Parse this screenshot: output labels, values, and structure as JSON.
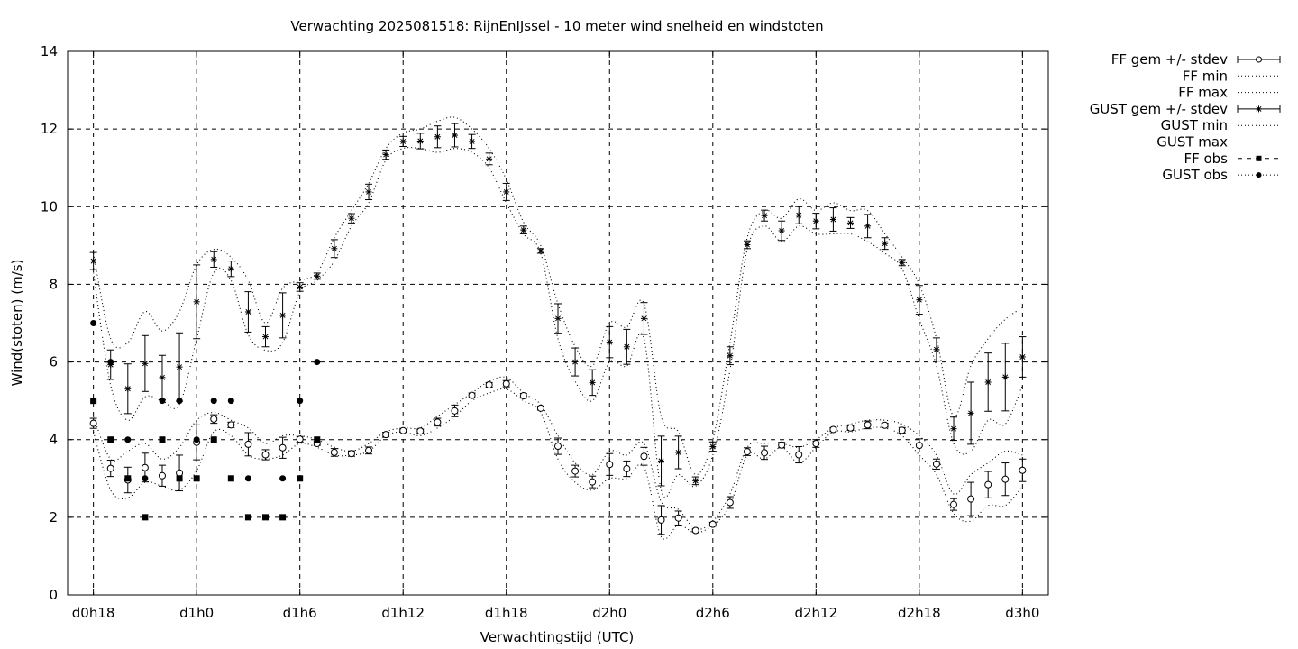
{
  "chart_data": {
    "type": "line",
    "title": "Verwachting 2025081518: RijnEnIJssel - 10 meter wind snelheid en windstoten",
    "xlabel": "Verwachtingstijd (UTC)",
    "ylabel": "Wind(stoten) (m/s)",
    "x_unit": "hours",
    "xlim": [
      -1.5,
      55.5
    ],
    "ylim": [
      0,
      14
    ],
    "yticks": [
      0,
      2,
      4,
      6,
      8,
      10,
      12,
      14
    ],
    "xticks": [
      {
        "x": 0,
        "label": "d0h18"
      },
      {
        "x": 6,
        "label": "d1h0"
      },
      {
        "x": 12,
        "label": "d1h6"
      },
      {
        "x": 18,
        "label": "d1h12"
      },
      {
        "x": 24,
        "label": "d1h18"
      },
      {
        "x": 30,
        "label": "d2h0"
      },
      {
        "x": 36,
        "label": "d2h6"
      },
      {
        "x": 42,
        "label": "d2h12"
      },
      {
        "x": 48,
        "label": "d2h18"
      },
      {
        "x": 54,
        "label": "d3h0"
      }
    ],
    "grid": true,
    "legend_position": "outside-right",
    "legend": [
      {
        "key": "ff_mean",
        "label": "FF gem +/- stdev"
      },
      {
        "key": "ff_min",
        "label": "FF min"
      },
      {
        "key": "ff_max",
        "label": "FF max"
      },
      {
        "key": "gust_mean",
        "label": "GUST gem +/- stdev"
      },
      {
        "key": "gust_min",
        "label": "GUST min"
      },
      {
        "key": "gust_max",
        "label": "GUST max"
      },
      {
        "key": "ff_obs",
        "label": "FF obs"
      },
      {
        "key": "gust_obs",
        "label": "GUST obs"
      }
    ],
    "x": [
      0,
      1,
      2,
      3,
      4,
      5,
      6,
      7,
      8,
      9,
      10,
      11,
      12,
      13,
      14,
      15,
      16,
      17,
      18,
      19,
      20,
      21,
      22,
      23,
      24,
      25,
      26,
      27,
      28,
      29,
      30,
      31,
      32,
      33,
      34,
      35,
      36,
      37,
      38,
      39,
      40,
      41,
      42,
      43,
      44,
      45,
      46,
      47,
      48,
      49,
      50,
      51,
      52,
      53,
      54
    ],
    "ff_mean": [
      4.42,
      3.26,
      2.96,
      3.28,
      3.07,
      3.14,
      3.93,
      4.53,
      4.38,
      3.88,
      3.61,
      3.79,
      4.01,
      3.9,
      3.67,
      3.64,
      3.72,
      4.13,
      4.23,
      4.22,
      4.45,
      4.74,
      5.14,
      5.41,
      5.44,
      5.13,
      4.81,
      3.83,
      3.19,
      2.91,
      3.36,
      3.25,
      3.57,
      1.93,
      1.98,
      1.66,
      1.82,
      2.38,
      3.69,
      3.66,
      3.86,
      3.61,
      3.9,
      4.26,
      4.3,
      4.38,
      4.37,
      4.24,
      3.85,
      3.37,
      2.33,
      2.47,
      2.84,
      2.98,
      3.21
    ],
    "ff_sd": [
      0.13,
      0.21,
      0.33,
      0.37,
      0.27,
      0.46,
      0.45,
      0.11,
      0.07,
      0.3,
      0.13,
      0.27,
      0.07,
      0.05,
      0.1,
      0.07,
      0.09,
      0.06,
      0.04,
      0.05,
      0.1,
      0.15,
      0.06,
      0.06,
      0.08,
      0.06,
      0.05,
      0.21,
      0.15,
      0.15,
      0.28,
      0.2,
      0.23,
      0.37,
      0.18,
      0.04,
      0.05,
      0.15,
      0.1,
      0.17,
      0.07,
      0.21,
      0.1,
      0.05,
      0.06,
      0.1,
      0.05,
      0.07,
      0.17,
      0.13,
      0.15,
      0.43,
      0.34,
      0.42,
      0.29
    ],
    "ff_min": [
      4.2,
      2.7,
      2.5,
      2.9,
      2.8,
      2.7,
      3.2,
      4.2,
      4.1,
      3.6,
      3.5,
      3.6,
      3.9,
      3.8,
      3.6,
      3.6,
      3.7,
      4.1,
      4.2,
      4.1,
      4.3,
      4.6,
      5.0,
      5.2,
      5.3,
      5.0,
      4.7,
      3.5,
      2.9,
      2.7,
      3.0,
      3.0,
      3.3,
      1.5,
      1.8,
      1.6,
      1.8,
      2.3,
      3.6,
      3.5,
      3.8,
      3.4,
      3.8,
      4.2,
      4.2,
      4.3,
      4.3,
      4.1,
      3.6,
      3.1,
      2.1,
      1.9,
      2.3,
      2.3,
      2.8
    ],
    "ff_max": [
      4.6,
      3.5,
      3.7,
      3.9,
      3.5,
      3.8,
      4.5,
      4.7,
      4.5,
      4.3,
      3.9,
      4.1,
      4.1,
      4.0,
      3.8,
      3.7,
      3.9,
      4.2,
      4.3,
      4.3,
      4.6,
      4.9,
      5.2,
      5.5,
      5.6,
      5.2,
      4.9,
      4.1,
      3.4,
      3.1,
      3.7,
      3.6,
      3.9,
      2.4,
      2.2,
      1.7,
      1.9,
      2.6,
      3.8,
      3.9,
      3.9,
      3.8,
      4.0,
      4.3,
      4.4,
      4.5,
      4.5,
      4.4,
      4.1,
      3.6,
      2.6,
      3.1,
      3.4,
      3.7,
      3.6
    ],
    "gust_mean": [
      8.6,
      5.93,
      5.31,
      5.96,
      5.6,
      5.87,
      7.55,
      8.64,
      8.4,
      7.29,
      6.65,
      7.2,
      7.93,
      8.21,
      8.92,
      9.7,
      10.38,
      11.34,
      11.68,
      11.69,
      11.8,
      11.84,
      11.68,
      11.23,
      10.38,
      9.4,
      8.86,
      7.12,
      6.0,
      5.47,
      6.51,
      6.39,
      7.12,
      3.45,
      3.67,
      2.94,
      3.82,
      6.16,
      9.02,
      9.77,
      9.38,
      9.78,
      9.63,
      9.67,
      9.58,
      9.5,
      9.05,
      8.56,
      7.6,
      6.32,
      4.28,
      4.68,
      5.48,
      5.61,
      6.13
    ],
    "gust_sd": [
      0.22,
      0.38,
      0.64,
      0.72,
      0.57,
      0.88,
      0.95,
      0.2,
      0.2,
      0.52,
      0.26,
      0.58,
      0.11,
      0.08,
      0.23,
      0.12,
      0.2,
      0.12,
      0.13,
      0.2,
      0.28,
      0.3,
      0.18,
      0.15,
      0.22,
      0.1,
      0.06,
      0.38,
      0.36,
      0.33,
      0.4,
      0.45,
      0.41,
      0.64,
      0.42,
      0.1,
      0.12,
      0.23,
      0.1,
      0.14,
      0.25,
      0.22,
      0.2,
      0.3,
      0.14,
      0.3,
      0.15,
      0.08,
      0.37,
      0.3,
      0.3,
      0.8,
      0.75,
      0.87,
      0.52
    ],
    "gust_min": [
      8.3,
      5.4,
      4.5,
      5.1,
      5.0,
      4.9,
      6.6,
      8.3,
      8.1,
      6.7,
      6.3,
      6.5,
      7.8,
      8.1,
      8.6,
      9.5,
      10.1,
      11.2,
      11.5,
      11.5,
      11.4,
      11.5,
      11.4,
      11.0,
      10.1,
      9.3,
      8.8,
      6.6,
      5.5,
      5.0,
      6.0,
      5.9,
      6.6,
      2.7,
      3.1,
      2.8,
      3.6,
      5.8,
      8.9,
      9.5,
      9.1,
      9.5,
      9.3,
      9.3,
      9.3,
      9.1,
      8.8,
      8.4,
      7.1,
      5.9,
      3.9,
      3.7,
      4.5,
      4.4,
      5.4
    ],
    "gust_max": [
      8.8,
      6.6,
      6.5,
      7.3,
      6.8,
      7.3,
      8.5,
      8.9,
      8.7,
      8.1,
      7.0,
      7.9,
      8.1,
      8.3,
      9.2,
      9.9,
      10.6,
      11.5,
      11.9,
      12.0,
      12.2,
      12.3,
      12.0,
      11.5,
      10.7,
      9.6,
      9.0,
      7.5,
      6.4,
      5.9,
      7.0,
      6.9,
      7.5,
      4.6,
      4.2,
      3.1,
      4.0,
      6.5,
      9.2,
      9.9,
      9.7,
      10.2,
      9.9,
      10.1,
      9.9,
      9.9,
      9.3,
      8.7,
      8.0,
      6.6,
      4.6,
      5.9,
      6.6,
      7.1,
      7.4
    ],
    "ff_obs": [
      [
        0,
        5
      ],
      [
        1,
        4
      ],
      [
        2,
        3
      ],
      [
        3,
        2
      ],
      [
        4,
        4
      ],
      [
        5,
        3
      ],
      [
        6,
        3
      ],
      [
        7,
        4
      ],
      [
        8,
        3
      ],
      [
        9,
        2
      ],
      [
        10,
        2
      ],
      [
        11,
        2
      ],
      [
        12,
        3
      ],
      [
        13,
        4
      ]
    ],
    "gust_obs": [
      [
        0,
        7
      ],
      [
        1,
        6
      ],
      [
        2,
        4
      ],
      [
        3,
        3
      ],
      [
        4,
        5
      ],
      [
        5,
        5
      ],
      [
        6,
        4
      ],
      [
        7,
        5
      ],
      [
        8,
        5
      ],
      [
        9,
        3
      ],
      [
        11,
        3
      ],
      [
        12,
        5
      ],
      [
        13,
        6
      ]
    ]
  }
}
